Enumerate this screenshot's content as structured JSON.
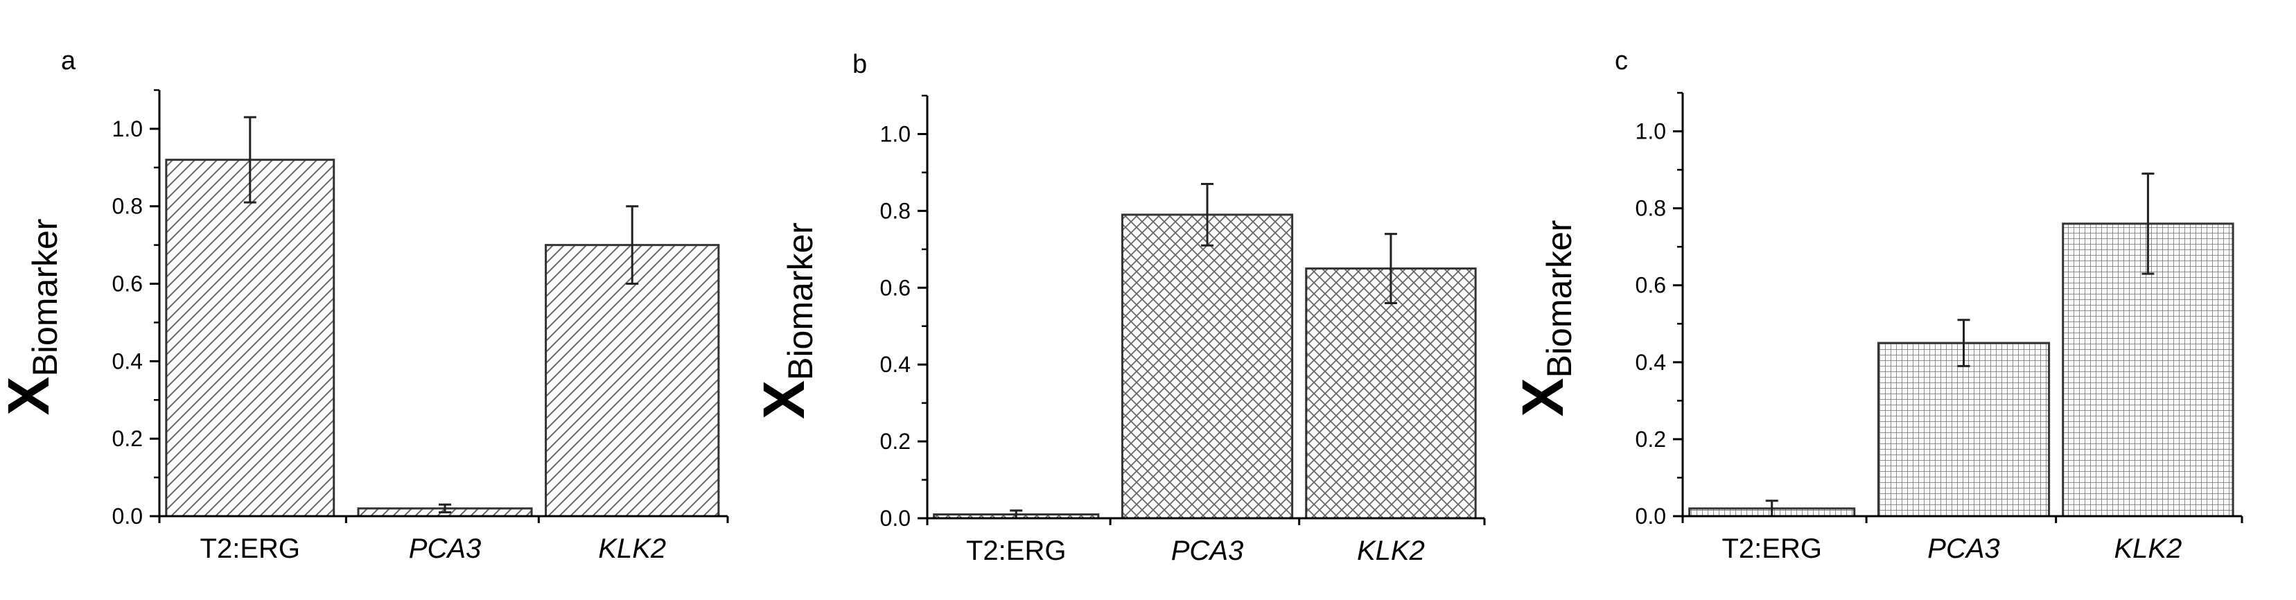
{
  "figure": {
    "panels": [
      {
        "letter": "a",
        "chart_data": {
          "type": "bar",
          "title": "",
          "xlabel": "",
          "ylabel": "XBiomarker",
          "ylabel_main": "X",
          "ylabel_sub": "Biomarker",
          "categories": [
            "T2:ERG",
            "PCA3",
            "KLK2"
          ],
          "italic_categories": [
            false,
            true,
            true
          ],
          "values": [
            0.92,
            0.02,
            0.7
          ],
          "errors": [
            0.11,
            0.01,
            0.1
          ],
          "ylim": [
            0,
            1.1
          ],
          "yticks": [
            0.0,
            0.2,
            0.4,
            0.6,
            0.8,
            1.0
          ],
          "ytick_labels": [
            "0.0",
            "0.2",
            "0.4",
            "0.6",
            "0.8",
            "1.0"
          ],
          "fill_pattern": "diagonal-hatch",
          "grid": false
        }
      },
      {
        "letter": "b",
        "chart_data": {
          "type": "bar",
          "title": "",
          "xlabel": "",
          "ylabel": "XBiomarker",
          "ylabel_main": "X",
          "ylabel_sub": "Biomarker",
          "categories": [
            "T2:ERG",
            "PCA3",
            "KLK2"
          ],
          "italic_categories": [
            false,
            true,
            true
          ],
          "values": [
            0.01,
            0.79,
            0.65
          ],
          "errors": [
            0.01,
            0.08,
            0.09
          ],
          "ylim": [
            0,
            1.1
          ],
          "yticks": [
            0.0,
            0.2,
            0.4,
            0.6,
            0.8,
            1.0
          ],
          "ytick_labels": [
            "0.0",
            "0.2",
            "0.4",
            "0.6",
            "0.8",
            "1.0"
          ],
          "fill_pattern": "cross-hatch",
          "grid": false
        }
      },
      {
        "letter": "c",
        "chart_data": {
          "type": "bar",
          "title": "",
          "xlabel": "",
          "ylabel": "XBiomarker",
          "ylabel_main": "X",
          "ylabel_sub": "Biomarker",
          "categories": [
            "T2:ERG",
            "PCA3",
            "KLK2"
          ],
          "italic_categories": [
            false,
            true,
            true
          ],
          "values": [
            0.02,
            0.45,
            0.76
          ],
          "errors": [
            0.02,
            0.06,
            0.13
          ],
          "ylim": [
            0,
            1.1
          ],
          "yticks": [
            0.0,
            0.2,
            0.4,
            0.6,
            0.8,
            1.0
          ],
          "ytick_labels": [
            "0.0",
            "0.2",
            "0.4",
            "0.6",
            "0.8",
            "1.0"
          ],
          "fill_pattern": "grid-hatch",
          "grid": false
        }
      }
    ]
  },
  "colors": {
    "axis": "#000000",
    "bar_edge": "#333333",
    "bar_background": "#ffffff",
    "hatch": "#555555",
    "error_bar": "#222222"
  }
}
